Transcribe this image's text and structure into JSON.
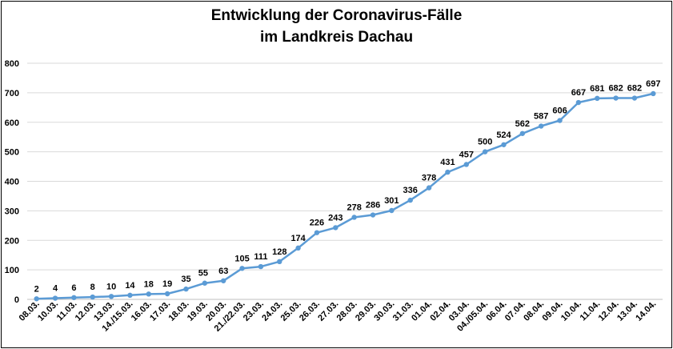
{
  "chart_data": {
    "type": "line",
    "title_line1": "Entwicklung der Coronavirus-Fälle",
    "title_line2": "im Landkreis Dachau",
    "xlabel": "",
    "ylabel": "",
    "ylim": [
      0,
      800
    ],
    "yticks": [
      0,
      100,
      200,
      300,
      400,
      500,
      600,
      700,
      800
    ],
    "grid": true,
    "legend": "none",
    "color": "#5b9bd5",
    "categories": [
      "08.03.",
      "10.03.",
      "11.03.",
      "12.03.",
      "13.03.",
      "14./15.03.",
      "16.03.",
      "17.03.",
      "18.03.",
      "19.03.",
      "20.03.",
      "21./22.03.",
      "23.03.",
      "24.03.",
      "25.03.",
      "26.03.",
      "27.03.",
      "28.03.",
      "29.03.",
      "30.03.",
      "31.03.",
      "01.04.",
      "02.04.",
      "03.04.",
      "04./05.04.",
      "06.04.",
      "07.04.",
      "08.04.",
      "09.04.",
      "10.04.",
      "11.04.",
      "12.04.",
      "13.04.",
      "14.04."
    ],
    "values": [
      2,
      4,
      6,
      8,
      10,
      14,
      18,
      19,
      35,
      55,
      63,
      105,
      111,
      128,
      174,
      226,
      243,
      278,
      286,
      301,
      336,
      378,
      431,
      457,
      500,
      524,
      562,
      587,
      606,
      667,
      681,
      682,
      682,
      697
    ]
  }
}
